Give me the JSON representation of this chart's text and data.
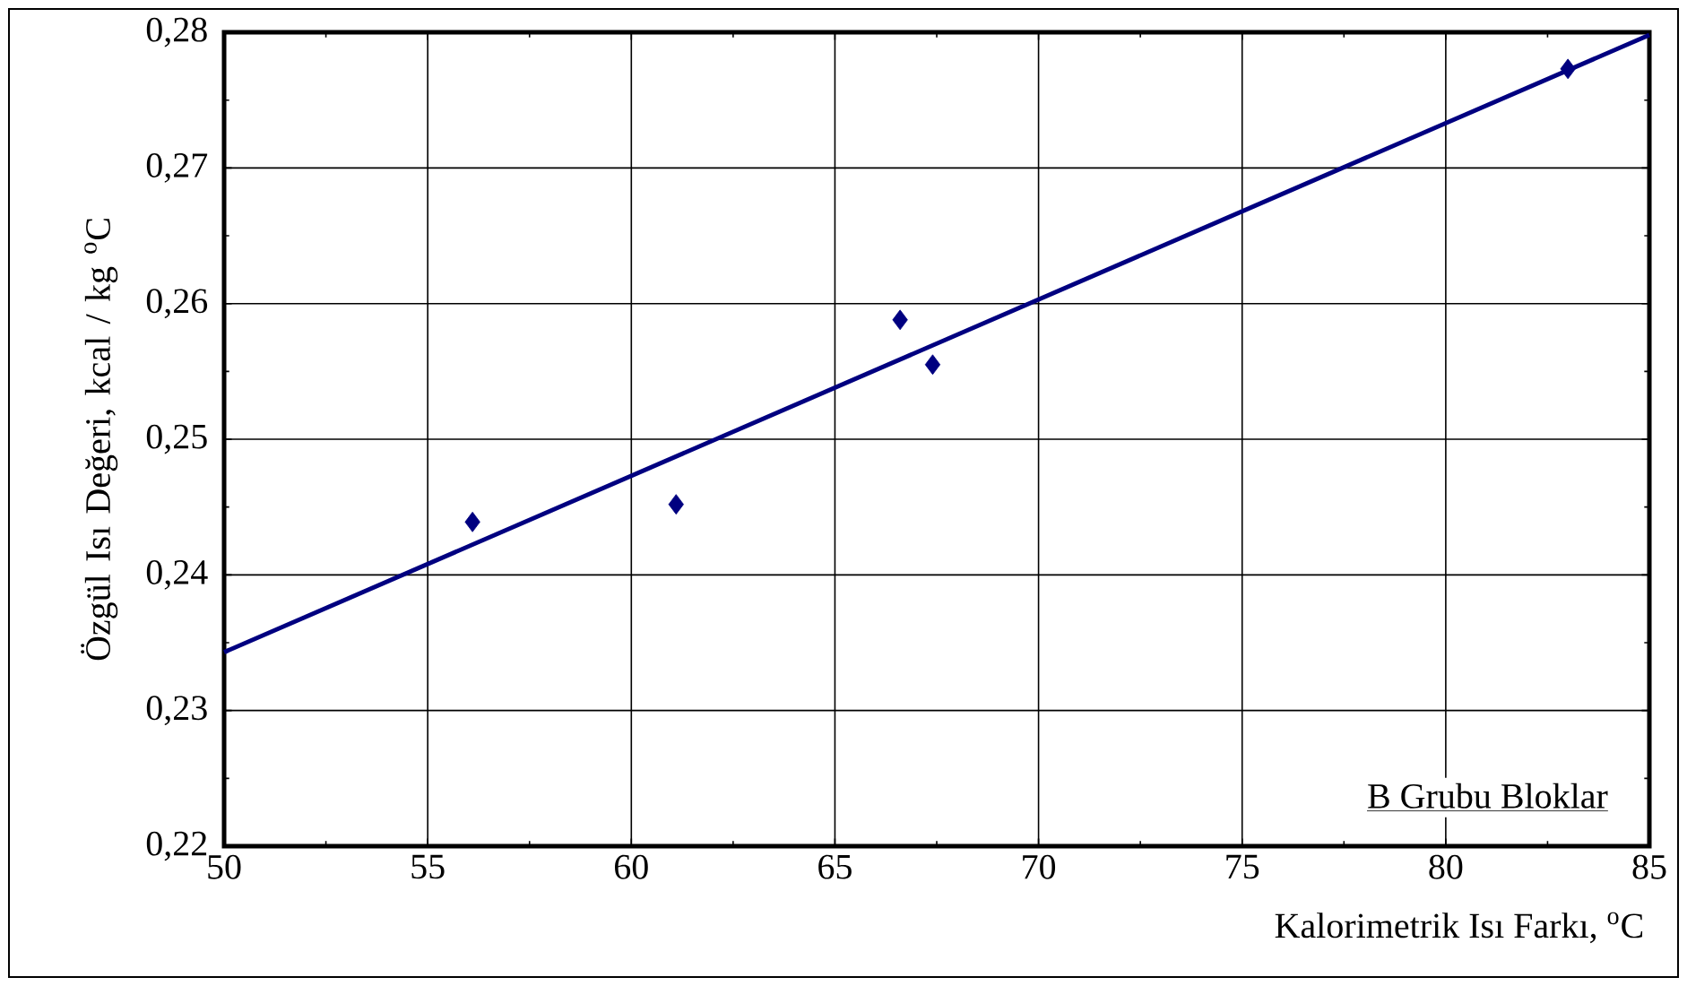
{
  "chart_data": {
    "type": "scatter",
    "xlabel": "Kalorimetrik Isı Farkı, $^{o}$C",
    "ylabel": "Özgül Isı Değeri, kcal / kg $^{o}$C",
    "annotations": [
      "B Grubu Bloklar"
    ],
    "xlim": [
      50,
      85
    ],
    "ylim": [
      0.22,
      0.28
    ],
    "xticks": [
      50,
      55,
      60,
      65,
      70,
      75,
      80,
      85
    ],
    "yticks": [
      {
        "value": 0.22,
        "label": "0,22"
      },
      {
        "value": 0.23,
        "label": "0,23"
      },
      {
        "value": 0.24,
        "label": "0,24"
      },
      {
        "value": 0.25,
        "label": "0,25"
      },
      {
        "value": 0.26,
        "label": "0,26"
      },
      {
        "value": 0.27,
        "label": "0,27"
      },
      {
        "value": 0.28,
        "label": "0,28"
      }
    ],
    "grid": true,
    "series": [
      {
        "marker": "diamond",
        "color": "#000080",
        "x": [
          56.1,
          61.1,
          66.6,
          67.4,
          83.0
        ],
        "values": [
          0.2439,
          0.2452,
          0.2588,
          0.2555,
          0.2773
        ]
      },
      {
        "type": "line",
        "marker": "none",
        "line_style": "solid",
        "color": "#000080",
        "x": [
          50,
          85
        ],
        "values": [
          0.2343,
          0.2798
        ]
      }
    ]
  }
}
